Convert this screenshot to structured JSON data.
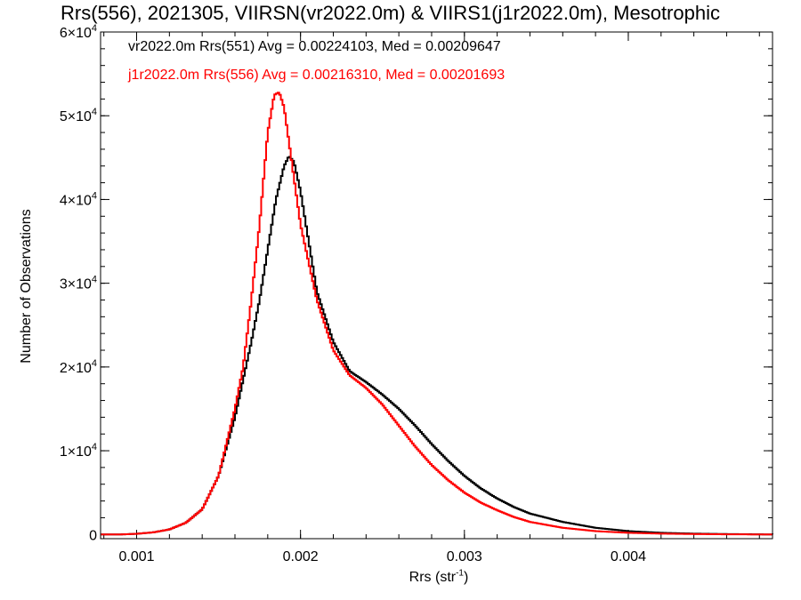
{
  "chart_data": {
    "type": "line",
    "title": "Rrs(556), 2021305, VIIRSN(vr2022.0m) & VIIRS1(j1r2022.0m), Mesotrophic",
    "xlabel": "Rrs (str",
    "xlabel_sup": "-1",
    "xlabel_tail": ")",
    "ylabel": "Number of Observations",
    "xlim": [
      0.00078,
      0.00488
    ],
    "ylim": [
      -500,
      60000
    ],
    "x_ticks": [
      0.001,
      0.002,
      0.003,
      0.004
    ],
    "x_tick_labels": [
      "0.001",
      "0.002",
      "0.003",
      "0.004"
    ],
    "y_ticks": [
      0,
      10000,
      20000,
      30000,
      40000,
      50000,
      60000
    ],
    "y_tick_labels": [
      {
        "base": "0",
        "exp": ""
      },
      {
        "base": "1×10",
        "exp": "4"
      },
      {
        "base": "2×10",
        "exp": "4"
      },
      {
        "base": "3×10",
        "exp": "4"
      },
      {
        "base": "4×10",
        "exp": "4"
      },
      {
        "base": "5×10",
        "exp": "4"
      },
      {
        "base": "6×10",
        "exp": "4"
      }
    ],
    "legend": [
      "vr2022.0m Rrs(551) Avg = 0.00224103, Med = 0.00209647",
      "j1r2022.0m Rrs(556) Avg = 0.00216310, Med = 0.00201693"
    ],
    "series": [
      {
        "color": "#000000",
        "x": [
          0.00078,
          0.0009,
          0.001,
          0.0011,
          0.0012,
          0.0013,
          0.0014,
          0.0015,
          0.0016,
          0.0017,
          0.00175,
          0.0018,
          0.00185,
          0.0019,
          0.00193,
          0.00196,
          0.002,
          0.00205,
          0.0021,
          0.0022,
          0.0023,
          0.0024,
          0.0025,
          0.0026,
          0.0027,
          0.0028,
          0.0029,
          0.003,
          0.0031,
          0.0032,
          0.0033,
          0.0034,
          0.0036,
          0.0038,
          0.004,
          0.0042,
          0.0044,
          0.0046,
          0.00488
        ],
        "values": [
          0,
          0,
          80,
          250,
          600,
          1400,
          3000,
          7000,
          14000,
          23000,
          28000,
          34000,
          40000,
          44000,
          45200,
          44500,
          41000,
          35000,
          29000,
          23000,
          19500,
          18200,
          16700,
          15000,
          13000,
          10800,
          8800,
          7000,
          5500,
          4300,
          3300,
          2500,
          1500,
          800,
          400,
          200,
          100,
          50,
          0
        ]
      },
      {
        "color": "#ff0000",
        "x": [
          0.00078,
          0.0009,
          0.001,
          0.0011,
          0.0012,
          0.0013,
          0.0014,
          0.0015,
          0.0016,
          0.00165,
          0.0017,
          0.00175,
          0.0018,
          0.00184,
          0.00187,
          0.0019,
          0.00195,
          0.002,
          0.0021,
          0.0022,
          0.0023,
          0.0024,
          0.0025,
          0.0026,
          0.0027,
          0.0028,
          0.0029,
          0.003,
          0.0031,
          0.0032,
          0.0033,
          0.0034,
          0.0036,
          0.0038,
          0.004,
          0.0042,
          0.0044,
          0.0046,
          0.00488
        ],
        "values": [
          0,
          0,
          80,
          250,
          600,
          1400,
          3000,
          7000,
          15000,
          20000,
          28000,
          37000,
          48000,
          52500,
          52800,
          51000,
          44000,
          37000,
          28000,
          22000,
          19000,
          17500,
          15500,
          13000,
          10500,
          8300,
          6500,
          5000,
          3800,
          2900,
          2100,
          1500,
          800,
          400,
          200,
          100,
          50,
          20,
          0
        ]
      }
    ]
  }
}
